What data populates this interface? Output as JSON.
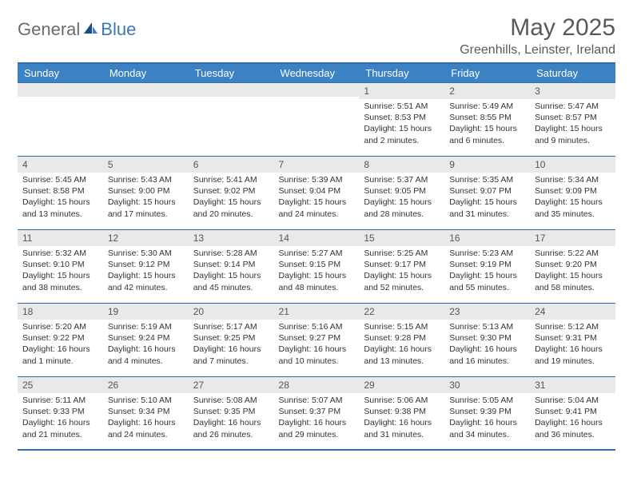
{
  "brand": {
    "part1": "General",
    "part2": "Blue"
  },
  "title": "May 2025",
  "location": "Greenhills, Leinster, Ireland",
  "colors": {
    "header_bg": "#3b82c4",
    "border": "#2f6ea8",
    "daynum_bg": "#e9e9e9",
    "text": "#333333",
    "title_text": "#595959"
  },
  "weekdays": [
    "Sunday",
    "Monday",
    "Tuesday",
    "Wednesday",
    "Thursday",
    "Friday",
    "Saturday"
  ],
  "weeks": [
    [
      {
        "n": "",
        "sr": "",
        "ss": "",
        "dl": ""
      },
      {
        "n": "",
        "sr": "",
        "ss": "",
        "dl": ""
      },
      {
        "n": "",
        "sr": "",
        "ss": "",
        "dl": ""
      },
      {
        "n": "",
        "sr": "",
        "ss": "",
        "dl": ""
      },
      {
        "n": "1",
        "sr": "Sunrise: 5:51 AM",
        "ss": "Sunset: 8:53 PM",
        "dl": "Daylight: 15 hours and 2 minutes."
      },
      {
        "n": "2",
        "sr": "Sunrise: 5:49 AM",
        "ss": "Sunset: 8:55 PM",
        "dl": "Daylight: 15 hours and 6 minutes."
      },
      {
        "n": "3",
        "sr": "Sunrise: 5:47 AM",
        "ss": "Sunset: 8:57 PM",
        "dl": "Daylight: 15 hours and 9 minutes."
      }
    ],
    [
      {
        "n": "4",
        "sr": "Sunrise: 5:45 AM",
        "ss": "Sunset: 8:58 PM",
        "dl": "Daylight: 15 hours and 13 minutes."
      },
      {
        "n": "5",
        "sr": "Sunrise: 5:43 AM",
        "ss": "Sunset: 9:00 PM",
        "dl": "Daylight: 15 hours and 17 minutes."
      },
      {
        "n": "6",
        "sr": "Sunrise: 5:41 AM",
        "ss": "Sunset: 9:02 PM",
        "dl": "Daylight: 15 hours and 20 minutes."
      },
      {
        "n": "7",
        "sr": "Sunrise: 5:39 AM",
        "ss": "Sunset: 9:04 PM",
        "dl": "Daylight: 15 hours and 24 minutes."
      },
      {
        "n": "8",
        "sr": "Sunrise: 5:37 AM",
        "ss": "Sunset: 9:05 PM",
        "dl": "Daylight: 15 hours and 28 minutes."
      },
      {
        "n": "9",
        "sr": "Sunrise: 5:35 AM",
        "ss": "Sunset: 9:07 PM",
        "dl": "Daylight: 15 hours and 31 minutes."
      },
      {
        "n": "10",
        "sr": "Sunrise: 5:34 AM",
        "ss": "Sunset: 9:09 PM",
        "dl": "Daylight: 15 hours and 35 minutes."
      }
    ],
    [
      {
        "n": "11",
        "sr": "Sunrise: 5:32 AM",
        "ss": "Sunset: 9:10 PM",
        "dl": "Daylight: 15 hours and 38 minutes."
      },
      {
        "n": "12",
        "sr": "Sunrise: 5:30 AM",
        "ss": "Sunset: 9:12 PM",
        "dl": "Daylight: 15 hours and 42 minutes."
      },
      {
        "n": "13",
        "sr": "Sunrise: 5:28 AM",
        "ss": "Sunset: 9:14 PM",
        "dl": "Daylight: 15 hours and 45 minutes."
      },
      {
        "n": "14",
        "sr": "Sunrise: 5:27 AM",
        "ss": "Sunset: 9:15 PM",
        "dl": "Daylight: 15 hours and 48 minutes."
      },
      {
        "n": "15",
        "sr": "Sunrise: 5:25 AM",
        "ss": "Sunset: 9:17 PM",
        "dl": "Daylight: 15 hours and 52 minutes."
      },
      {
        "n": "16",
        "sr": "Sunrise: 5:23 AM",
        "ss": "Sunset: 9:19 PM",
        "dl": "Daylight: 15 hours and 55 minutes."
      },
      {
        "n": "17",
        "sr": "Sunrise: 5:22 AM",
        "ss": "Sunset: 9:20 PM",
        "dl": "Daylight: 15 hours and 58 minutes."
      }
    ],
    [
      {
        "n": "18",
        "sr": "Sunrise: 5:20 AM",
        "ss": "Sunset: 9:22 PM",
        "dl": "Daylight: 16 hours and 1 minute."
      },
      {
        "n": "19",
        "sr": "Sunrise: 5:19 AM",
        "ss": "Sunset: 9:24 PM",
        "dl": "Daylight: 16 hours and 4 minutes."
      },
      {
        "n": "20",
        "sr": "Sunrise: 5:17 AM",
        "ss": "Sunset: 9:25 PM",
        "dl": "Daylight: 16 hours and 7 minutes."
      },
      {
        "n": "21",
        "sr": "Sunrise: 5:16 AM",
        "ss": "Sunset: 9:27 PM",
        "dl": "Daylight: 16 hours and 10 minutes."
      },
      {
        "n": "22",
        "sr": "Sunrise: 5:15 AM",
        "ss": "Sunset: 9:28 PM",
        "dl": "Daylight: 16 hours and 13 minutes."
      },
      {
        "n": "23",
        "sr": "Sunrise: 5:13 AM",
        "ss": "Sunset: 9:30 PM",
        "dl": "Daylight: 16 hours and 16 minutes."
      },
      {
        "n": "24",
        "sr": "Sunrise: 5:12 AM",
        "ss": "Sunset: 9:31 PM",
        "dl": "Daylight: 16 hours and 19 minutes."
      }
    ],
    [
      {
        "n": "25",
        "sr": "Sunrise: 5:11 AM",
        "ss": "Sunset: 9:33 PM",
        "dl": "Daylight: 16 hours and 21 minutes."
      },
      {
        "n": "26",
        "sr": "Sunrise: 5:10 AM",
        "ss": "Sunset: 9:34 PM",
        "dl": "Daylight: 16 hours and 24 minutes."
      },
      {
        "n": "27",
        "sr": "Sunrise: 5:08 AM",
        "ss": "Sunset: 9:35 PM",
        "dl": "Daylight: 16 hours and 26 minutes."
      },
      {
        "n": "28",
        "sr": "Sunrise: 5:07 AM",
        "ss": "Sunset: 9:37 PM",
        "dl": "Daylight: 16 hours and 29 minutes."
      },
      {
        "n": "29",
        "sr": "Sunrise: 5:06 AM",
        "ss": "Sunset: 9:38 PM",
        "dl": "Daylight: 16 hours and 31 minutes."
      },
      {
        "n": "30",
        "sr": "Sunrise: 5:05 AM",
        "ss": "Sunset: 9:39 PM",
        "dl": "Daylight: 16 hours and 34 minutes."
      },
      {
        "n": "31",
        "sr": "Sunrise: 5:04 AM",
        "ss": "Sunset: 9:41 PM",
        "dl": "Daylight: 16 hours and 36 minutes."
      }
    ]
  ]
}
